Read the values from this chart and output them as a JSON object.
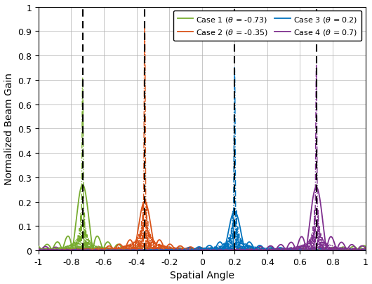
{
  "title": "",
  "xlabel": "Spatial Angle",
  "ylabel": "Normalized Beam Gain",
  "xlim": [
    -1,
    1
  ],
  "ylim": [
    0,
    1
  ],
  "yticks": [
    0,
    0.1,
    0.2,
    0.3,
    0.4,
    0.5,
    0.6,
    0.7,
    0.8,
    0.9,
    1.0
  ],
  "xticks": [
    -1,
    -0.8,
    -0.6,
    -0.4,
    -0.2,
    0,
    0.2,
    0.4,
    0.6,
    0.8,
    1.0
  ],
  "cases": [
    {
      "theta": -0.73,
      "color": "#77AC30",
      "label": "Case 1 ($\\theta$ = -0.73)",
      "ff_peak": 0.71,
      "nf_peak": 0.27,
      "N_ff": 256,
      "N_nf": 32
    },
    {
      "theta": -0.35,
      "color": "#D95319",
      "label": "Case 2 ($\\theta$ = -0.35)",
      "ff_peak": 0.93,
      "nf_peak": 0.2,
      "N_ff": 256,
      "N_nf": 32
    },
    {
      "theta": 0.2,
      "color": "#0072BD",
      "label": "Case 3 ($\\theta$ = 0.2)",
      "ff_peak": 0.75,
      "nf_peak": 0.16,
      "N_ff": 256,
      "N_nf": 32
    },
    {
      "theta": 0.7,
      "color": "#7E2F8E",
      "label": "Case 4 ($\\theta$ = 0.7)",
      "ff_peak": 0.76,
      "nf_peak": 0.26,
      "N_ff": 256,
      "N_nf": 32
    }
  ],
  "background_color": "#ffffff",
  "grid_color": "#b0b0b0"
}
